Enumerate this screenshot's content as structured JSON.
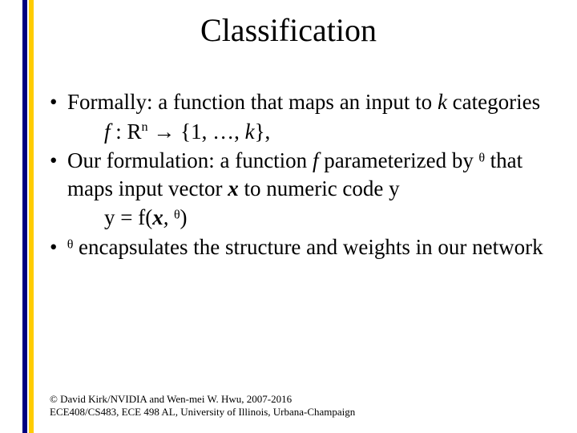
{
  "title": "Classification",
  "bullets": [
    {
      "lead": "Formally: a function that maps an input to ",
      "lead_ital": "k",
      "lead_tail": " categories",
      "formula_pre": "f ",
      "formula_mid": ": R",
      "formula_sup": "n",
      "formula_post": " → {1, …, ",
      "formula_ital2": "k",
      "formula_end": "},"
    },
    {
      "text_a": "Our formulation: a function ",
      "text_ital": "f",
      "text_b": " parameterized by ",
      "theta": "ᶿ",
      "text_c": " that maps input vector ",
      "text_bolditalic": "x",
      "text_d": " to numeric code y",
      "formula": "y = f(",
      "formula_bi": "x",
      "formula_mid": ", ",
      "formula_theta": "ᶿ",
      "formula_end": ")"
    },
    {
      "theta": "ᶿ",
      "text": "  encapsulates the structure and weights in our network"
    }
  ],
  "footer": {
    "line1": "© David Kirk/NVIDIA and Wen-mei W. Hwu, 2007-2016",
    "line2": "ECE408/CS483, ECE 498 AL, University of Illinois, Urbana-Champaign"
  },
  "colors": {
    "accent1": "#000080",
    "accent2": "#ffcc00",
    "text": "#000000",
    "background": "#ffffff"
  },
  "typography": {
    "title_fontsize": 40,
    "body_fontsize": 27,
    "footer_fontsize": 13,
    "font_family": "Times New Roman"
  }
}
